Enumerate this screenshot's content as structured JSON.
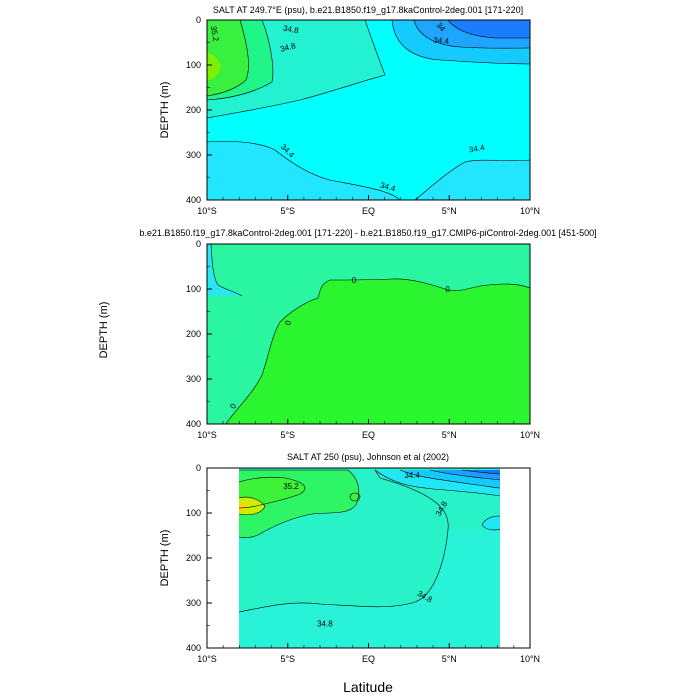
{
  "figure": {
    "xlabel": "Latitude",
    "ylabel": "DEPTH (m)"
  },
  "chart_data": [
    {
      "type": "heatmap",
      "title": "SALT AT 249.7°E (psu), b.e21.B1850.f19_g17.8kaControl-2deg.001 [171-220]",
      "xlabel": "",
      "ylabel": "DEPTH (m)",
      "x_ticks": [
        "10°S",
        "5°S",
        "EQ",
        "5°N",
        "10°N"
      ],
      "x_values": [
        -10,
        -5,
        0,
        5,
        10
      ],
      "y_ticks": [
        "0",
        "100",
        "200",
        "300",
        "400"
      ],
      "y_values": [
        0,
        100,
        200,
        300,
        400
      ],
      "xlim": [
        -10,
        10
      ],
      "ylim": [
        400,
        0
      ],
      "background_color": "#00ffff",
      "contour_labels": [
        {
          "text": "35.2",
          "x": -9.5,
          "y": 30,
          "rotate": 80
        },
        {
          "text": "34.8",
          "x": -4.8,
          "y": 20,
          "rotate": 10
        },
        {
          "text": "34.8",
          "x": -5.0,
          "y": 60,
          "rotate": -15
        },
        {
          "text": "34",
          "x": 4.5,
          "y": 15,
          "rotate": 50
        },
        {
          "text": "34.4",
          "x": 4.5,
          "y": 45,
          "rotate": 5
        },
        {
          "text": "34.4",
          "x": -5.0,
          "y": 290,
          "rotate": 45
        },
        {
          "text": "34.4",
          "x": 1.2,
          "y": 370,
          "rotate": 15
        },
        {
          "text": "34.4",
          "x": 6.7,
          "y": 285,
          "rotate": -10
        }
      ]
    },
    {
      "type": "heatmap",
      "title": "b.e21.B1850.f19_g17.8kaControl-2deg.001 [171-220] - b.e21.B1850.f19_g17.CMIP6-piControl-2deg.001 [451-500]",
      "xlabel": "",
      "ylabel": "DEPTH (m)",
      "x_ticks": [
        "10°S",
        "5°S",
        "EQ",
        "5°N",
        "10°N"
      ],
      "x_values": [
        -10,
        -5,
        0,
        5,
        10
      ],
      "y_ticks": [
        "0",
        "100",
        "200",
        "300",
        "400"
      ],
      "y_values": [
        0,
        100,
        200,
        300,
        400
      ],
      "xlim": [
        -10,
        10
      ],
      "ylim": [
        400,
        0
      ],
      "background_color": "#2af5a0",
      "contour_labels": [
        {
          "text": "0",
          "x": -0.9,
          "y": 80,
          "rotate": 0
        },
        {
          "text": "0",
          "x": 4.9,
          "y": 100,
          "rotate": 0
        },
        {
          "text": "0",
          "x": -5.0,
          "y": 175,
          "rotate": -70
        },
        {
          "text": "0",
          "x": -8.4,
          "y": 360,
          "rotate": -60
        }
      ]
    },
    {
      "type": "heatmap",
      "title": "SALT AT 250 (psu), Johnson et al (2002)",
      "xlabel": "Latitude",
      "ylabel": "DEPTH (m)",
      "x_ticks": [
        "10°S",
        "5°S",
        "EQ",
        "5°N",
        "10°N"
      ],
      "x_values": [
        -10,
        -5,
        0,
        5,
        10
      ],
      "y_ticks": [
        "0",
        "100",
        "200",
        "300",
        "400"
      ],
      "y_values": [
        0,
        100,
        200,
        300,
        400
      ],
      "xlim": [
        -10,
        10
      ],
      "ylim": [
        400,
        0
      ],
      "data_xrange": [
        -8,
        8.2
      ],
      "background_color": "#28f2c8",
      "contour_labels": [
        {
          "text": "35.2",
          "x": -4.8,
          "y": 40,
          "rotate": 0
        },
        {
          "text": "34.4",
          "x": 2.7,
          "y": 15,
          "rotate": 0
        },
        {
          "text": "34.8",
          "x": 4.5,
          "y": 90,
          "rotate": -60
        },
        {
          "text": "34.8",
          "x": 3.5,
          "y": 285,
          "rotate": 30
        },
        {
          "text": "34.8",
          "x": -2.7,
          "y": 345,
          "rotate": 0
        }
      ]
    }
  ]
}
